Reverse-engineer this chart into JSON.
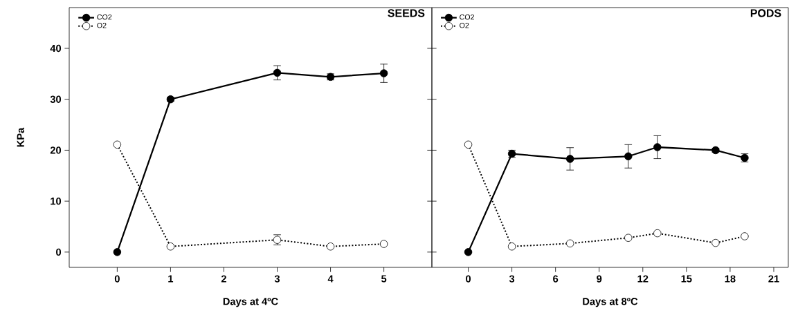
{
  "chart_data": [
    {
      "type": "line",
      "title": "SEEDS",
      "xlabel": "Days at 4ºC",
      "ylabel": "KPa",
      "xlim": [
        -0.9,
        5.9
      ],
      "xticks": [
        0,
        1,
        2,
        3,
        4,
        5
      ],
      "ylim": [
        -3,
        48
      ],
      "yticks": [
        0,
        10,
        20,
        30,
        40
      ],
      "legend": "top left",
      "marker": "circle",
      "x": [
        0,
        1,
        3,
        4,
        5
      ],
      "series": [
        {
          "name": "CO2",
          "color": "#000000",
          "line_style": "solid",
          "values": [
            0,
            30,
            35.2,
            34.4,
            35.1
          ],
          "errors": [
            null,
            0.4,
            1.4,
            0.6,
            1.8
          ]
        },
        {
          "name": "O2",
          "color": "#000000",
          "line_style": "dotted",
          "values": [
            21.1,
            1.1,
            2.4,
            1.1,
            1.6
          ],
          "errors": [
            null,
            null,
            1.0,
            null,
            null
          ]
        }
      ]
    },
    {
      "type": "line",
      "title": "PODS",
      "xlabel": "Days at 8ºC",
      "xlim": [
        -2.5,
        22
      ],
      "xticks": [
        0,
        3,
        6,
        9,
        12,
        15,
        18,
        21
      ],
      "ylim": [
        -3,
        48
      ],
      "yticks": [
        0,
        10,
        20,
        30,
        40
      ],
      "tick_labels": "x",
      "legend": "top left",
      "marker": "circle",
      "x": [
        0,
        3,
        7,
        11,
        13,
        17,
        19
      ],
      "series": [
        {
          "name": "CO2",
          "color": "#000000",
          "line_style": "solid",
          "values": [
            0,
            19.3,
            18.3,
            18.8,
            20.6,
            20.0,
            18.5
          ],
          "errors": [
            null,
            0.7,
            2.2,
            2.3,
            2.25,
            0.4,
            0.8
          ]
        },
        {
          "name": "O2",
          "color": "#000000",
          "line_style": "dotted",
          "values": [
            21.1,
            1.1,
            1.7,
            2.8,
            3.7,
            1.8,
            3.1
          ]
        }
      ]
    }
  ]
}
